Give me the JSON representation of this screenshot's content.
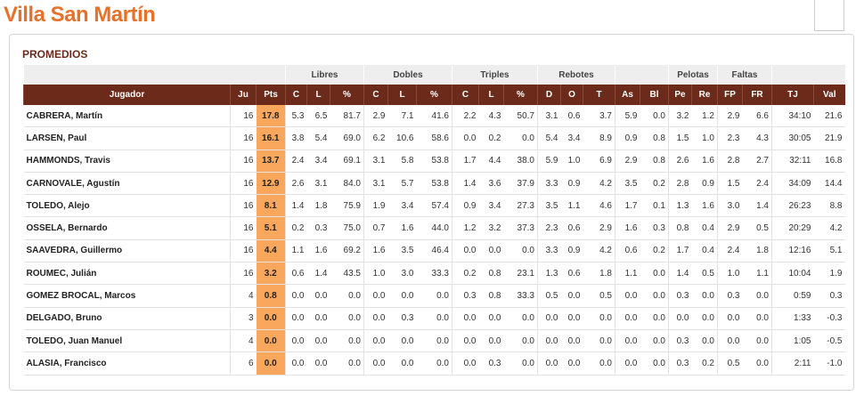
{
  "header": {
    "title": "Villa San Martín"
  },
  "section": "PROMEDIOS",
  "table": {
    "groups": [
      "Libres",
      "Dobles",
      "Triples",
      "Rebotes",
      "Pelotas",
      "Faltas"
    ],
    "columns": [
      "Jugador",
      "Ju",
      "Pts",
      "C",
      "L",
      "%",
      "C",
      "L",
      "%",
      "C",
      "L",
      "%",
      "D",
      "O",
      "T",
      "As",
      "Bl",
      "Pe",
      "Re",
      "FP",
      "FR",
      "TJ",
      "Val"
    ],
    "rows": [
      [
        "CABRERA, Martín",
        "16",
        "17.8",
        "5.3",
        "6.5",
        "81.7",
        "2.9",
        "7.1",
        "41.6",
        "2.2",
        "4.3",
        "50.7",
        "3.1",
        "0.6",
        "3.7",
        "5.9",
        "0.0",
        "3.2",
        "1.2",
        "2.9",
        "6.6",
        "34:10",
        "21.6"
      ],
      [
        "LARSEN, Paul",
        "16",
        "16.1",
        "3.8",
        "5.4",
        "69.0",
        "6.2",
        "10.6",
        "58.6",
        "0.0",
        "0.2",
        "0.0",
        "5.4",
        "3.4",
        "8.9",
        "0.9",
        "0.8",
        "1.5",
        "1.0",
        "2.3",
        "4.3",
        "30:05",
        "21.9"
      ],
      [
        "HAMMONDS, Travis",
        "16",
        "13.7",
        "2.4",
        "3.4",
        "69.1",
        "3.1",
        "5.8",
        "53.8",
        "1.7",
        "4.4",
        "38.0",
        "5.9",
        "1.0",
        "6.9",
        "2.9",
        "0.8",
        "2.6",
        "1.6",
        "2.8",
        "2.7",
        "32:11",
        "16.8"
      ],
      [
        "CARNOVALE, Agustín",
        "16",
        "12.9",
        "2.6",
        "3.1",
        "84.0",
        "3.1",
        "5.7",
        "53.8",
        "1.4",
        "3.6",
        "37.9",
        "3.3",
        "0.9",
        "4.2",
        "3.5",
        "0.2",
        "2.8",
        "0.9",
        "1.5",
        "2.4",
        "34:09",
        "14.4"
      ],
      [
        "TOLEDO, Alejo",
        "16",
        "8.1",
        "1.4",
        "1.8",
        "75.9",
        "1.9",
        "3.4",
        "57.4",
        "0.9",
        "3.4",
        "27.3",
        "3.5",
        "1.1",
        "4.6",
        "1.7",
        "0.1",
        "1.3",
        "1.6",
        "3.0",
        "1.4",
        "26:23",
        "8.8"
      ],
      [
        "OSSELA, Bernardo",
        "16",
        "5.1",
        "0.2",
        "0.3",
        "75.0",
        "0.7",
        "1.6",
        "44.0",
        "1.2",
        "3.2",
        "37.3",
        "2.3",
        "0.6",
        "2.9",
        "1.6",
        "0.3",
        "0.8",
        "0.4",
        "2.9",
        "0.5",
        "20:29",
        "4.2"
      ],
      [
        "SAAVEDRA, Guillermo",
        "16",
        "4.4",
        "1.1",
        "1.6",
        "69.2",
        "1.6",
        "3.5",
        "46.4",
        "0.0",
        "0.0",
        "0.0",
        "3.3",
        "0.9",
        "4.2",
        "0.6",
        "0.2",
        "1.7",
        "0.4",
        "2.4",
        "1.8",
        "12:16",
        "5.1"
      ],
      [
        "ROUMEC, Julián",
        "16",
        "3.2",
        "0.6",
        "1.4",
        "43.5",
        "1.0",
        "3.0",
        "33.3",
        "0.2",
        "0.8",
        "23.1",
        "1.3",
        "0.6",
        "1.8",
        "1.1",
        "0.0",
        "1.4",
        "0.5",
        "1.0",
        "1.1",
        "10:04",
        "1.9"
      ],
      [
        "GOMEZ BROCAL, Marcos",
        "4",
        "0.8",
        "0.0",
        "0.0",
        "0.0",
        "0.0",
        "0.0",
        "0.0",
        "0.3",
        "0.8",
        "33.3",
        "0.5",
        "0.0",
        "0.5",
        "0.0",
        "0.0",
        "0.3",
        "0.0",
        "0.3",
        "0.0",
        "0:59",
        "0.3"
      ],
      [
        "DELGADO, Bruno",
        "3",
        "0.0",
        "0.0",
        "0.0",
        "0.0",
        "0.0",
        "0.3",
        "0.0",
        "0.0",
        "0.0",
        "0.0",
        "0.0",
        "0.0",
        "0.0",
        "0.0",
        "0.0",
        "0.0",
        "0.0",
        "0.0",
        "0.0",
        "1:33",
        "-0.3"
      ],
      [
        "TOLEDO, Juan Manuel",
        "4",
        "0.0",
        "0.0",
        "0.0",
        "0.0",
        "0.0",
        "0.0",
        "0.0",
        "0.0",
        "0.0",
        "0.0",
        "0.0",
        "0.0",
        "0.0",
        "0.0",
        "0.0",
        "0.3",
        "0.0",
        "0.0",
        "0.0",
        "1:05",
        "-0.5"
      ],
      [
        "ALASIA, Francisco",
        "6",
        "0.0",
        "0.0",
        "0.0",
        "0.0",
        "0.0",
        "0.0",
        "0.0",
        "0.0",
        "0.3",
        "0.0",
        "0.0",
        "0.0",
        "0.0",
        "0.0",
        "0.0",
        "0.3",
        "0.2",
        "0.5",
        "0.0",
        "2:11",
        "-1.0"
      ]
    ]
  }
}
